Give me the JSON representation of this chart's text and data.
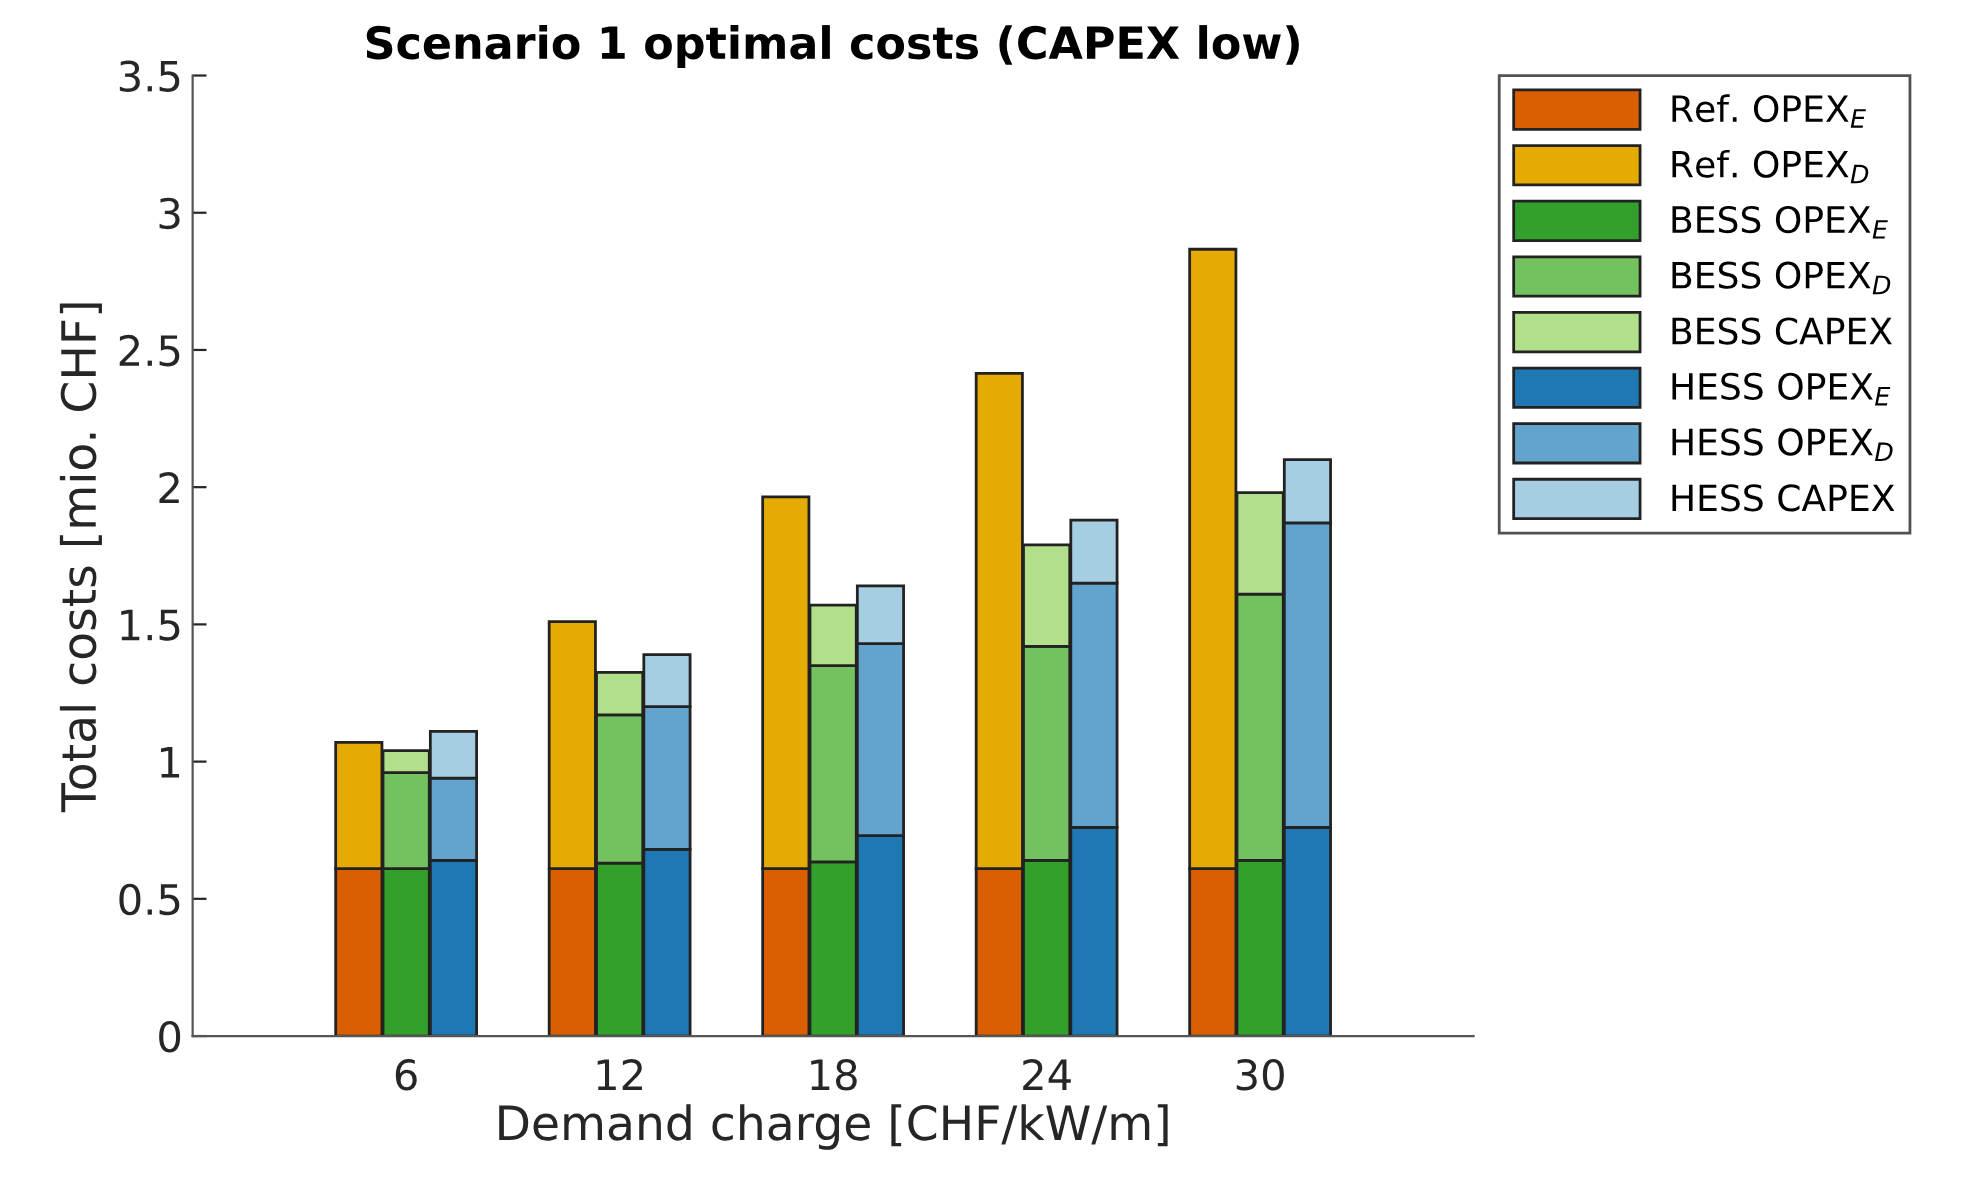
{
  "chart_data": {
    "type": "bar",
    "title": "Scenario 1 optimal costs (CAPEX low)",
    "xlabel": "Demand charge [CHF/kW/m]",
    "ylabel": "Total costs [mio. CHF]",
    "x": [
      4.67,
      6,
      7.33,
      10.67,
      12,
      13.33,
      16.67,
      18,
      19.33,
      22.67,
      24,
      25.33,
      28.67,
      30,
      31.33
    ],
    "stacked": true,
    "series": [
      {
        "name": "Ref. OPEX$_{E}$",
        "color": "#d95f02",
        "values": [
          0.61,
          null,
          null,
          0.61,
          null,
          null,
          0.61,
          null,
          null,
          0.61,
          null,
          null,
          0.61,
          null,
          null
        ]
      },
      {
        "name": "Ref. OPEX$_{D}$",
        "color": "#e6ab02",
        "values": [
          0.46,
          null,
          null,
          0.9,
          null,
          null,
          1.355,
          null,
          null,
          1.805,
          null,
          null,
          2.257,
          null,
          null
        ]
      },
      {
        "name": "BESS OPEX$_{E}$",
        "color": "#33a02c",
        "values": [
          null,
          0.61,
          null,
          null,
          0.63,
          null,
          null,
          0.635,
          null,
          null,
          0.64,
          null,
          null,
          0.64,
          null
        ]
      },
      {
        "name": "BESS OPEX$_{D}$",
        "color": "#74c160",
        "values": [
          null,
          0.35,
          null,
          null,
          0.54,
          null,
          null,
          0.715,
          null,
          null,
          0.78,
          null,
          null,
          0.97,
          null
        ]
      },
      {
        "name": "BESS CAPEX",
        "color": "#b2df8a",
        "values": [
          null,
          0.08,
          null,
          null,
          0.155,
          null,
          null,
          0.22,
          null,
          null,
          0.37,
          null,
          null,
          0.37,
          null
        ]
      },
      {
        "name": "HESS OPEX$_{E}$",
        "color": "#1f78b4",
        "values": [
          null,
          null,
          0.64,
          null,
          null,
          0.68,
          null,
          null,
          0.73,
          null,
          null,
          0.76,
          null,
          null,
          0.76
        ]
      },
      {
        "name": "HESS OPEX$_{D}$",
        "color": "#62a4cd",
        "values": [
          null,
          null,
          0.3,
          null,
          null,
          0.52,
          null,
          null,
          0.7,
          null,
          null,
          0.89,
          null,
          null,
          1.11
        ]
      },
      {
        "name": "HESS CAPEX",
        "color": "#a6cee3",
        "values": [
          null,
          null,
          0.17,
          null,
          null,
          0.19,
          null,
          null,
          0.21,
          null,
          null,
          0.23,
          null,
          null,
          0.23
        ]
      }
    ],
    "xlim": [
      0,
      36
    ],
    "xticks": [
      6,
      12,
      18,
      24,
      30
    ],
    "ylim": [
      0,
      3.5
    ],
    "yticks": [
      0,
      0.5,
      1,
      1.5,
      2,
      2.5,
      3,
      3.5
    ],
    "legend": "top right",
    "grid": false
  }
}
